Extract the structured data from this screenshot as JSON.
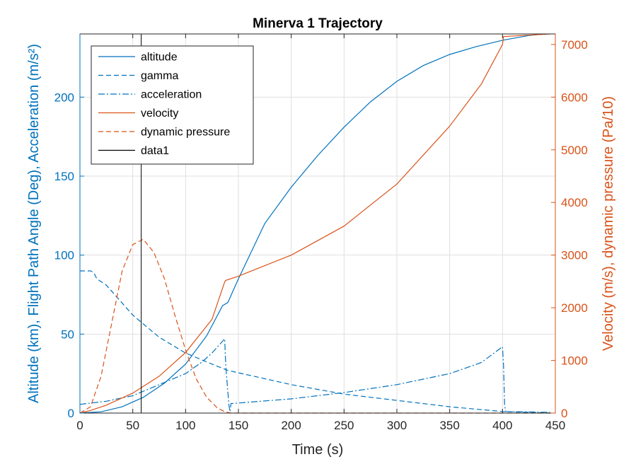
{
  "chart_data": {
    "type": "line",
    "title": "Minerva 1 Trajectory",
    "xlabel": "Time (s)",
    "ylabel_left": "Altitude (km), Flight Path Angle (Deg), Acceleration (m/s²)",
    "ylabel_right": "Velocity (m/s), dynamic pressure (Pa/10)",
    "xlim": [
      0,
      450
    ],
    "ylim_left": [
      0,
      240
    ],
    "ylim_right": [
      0,
      7200
    ],
    "xticks": [
      0,
      50,
      100,
      150,
      200,
      250,
      300,
      350,
      400,
      450
    ],
    "yticks_left": [
      0,
      50,
      100,
      150,
      200
    ],
    "yticks_right": [
      0,
      1000,
      2000,
      3000,
      4000,
      5000,
      6000,
      7000
    ],
    "grid": true,
    "legend_position": "top-left",
    "colors": {
      "left": "#0072BD",
      "right": "#D95319",
      "data1": "#000000"
    },
    "series": [
      {
        "name": "altitude",
        "axis": "left",
        "color": "#0072BD",
        "dash": "solid",
        "x": [
          0,
          20,
          40,
          60,
          80,
          100,
          120,
          135,
          140,
          150,
          175,
          200,
          225,
          250,
          275,
          300,
          325,
          350,
          375,
          400,
          425,
          440
        ],
        "y": [
          0,
          0.8,
          4,
          10,
          19,
          31,
          49,
          68,
          70,
          85,
          120,
          143,
          163,
          181,
          197,
          210,
          220,
          227,
          232,
          236,
          239,
          240
        ]
      },
      {
        "name": "gamma",
        "axis": "left",
        "color": "#0072BD",
        "dash": "dashed",
        "x": [
          0,
          10,
          13,
          16,
          25,
          50,
          75,
          100,
          125,
          140,
          200,
          250,
          300,
          350,
          400,
          445
        ],
        "y": [
          90,
          90,
          89,
          85,
          81,
          62,
          48,
          38,
          31,
          27,
          18,
          12,
          8,
          4,
          1,
          0
        ]
      },
      {
        "name": "acceleration",
        "axis": "left",
        "color": "#0072BD",
        "dash": "dashdot",
        "x": [
          0,
          25,
          50,
          75,
          100,
          115,
          125,
          137,
          138,
          141,
          142,
          143,
          200,
          250,
          300,
          350,
          380,
          400,
          401,
          402,
          403,
          445
        ],
        "y": [
          5.5,
          7.5,
          11,
          18,
          25,
          32,
          38,
          47,
          30,
          5,
          1,
          6,
          9,
          13,
          18,
          25,
          32,
          42,
          30,
          5,
          1,
          0.5
        ]
      },
      {
        "name": "velocity",
        "axis": "right",
        "color": "#D95319",
        "dash": "solid",
        "x": [
          0,
          10,
          25,
          50,
          75,
          100,
          125,
          137,
          138,
          150,
          200,
          250,
          300,
          350,
          380,
          400,
          401,
          445
        ],
        "y": [
          0,
          50,
          150,
          380,
          700,
          1150,
          1780,
          2490,
          2520,
          2600,
          3000,
          3550,
          4350,
          5450,
          6250,
          7000,
          7150,
          7200
        ]
      },
      {
        "name": "dynamic pressure",
        "axis": "right",
        "color": "#D95319",
        "dash": "dashed",
        "x": [
          0,
          10,
          20,
          30,
          40,
          50,
          60,
          70,
          80,
          90,
          100,
          110,
          120,
          130,
          137,
          143,
          445
        ],
        "y": [
          0,
          120,
          700,
          1700,
          2700,
          3200,
          3300,
          3050,
          2550,
          1850,
          1200,
          650,
          300,
          100,
          25,
          0,
          0
        ]
      }
    ],
    "reference_line": {
      "name": "data1",
      "x": 58,
      "color": "#000000"
    }
  }
}
